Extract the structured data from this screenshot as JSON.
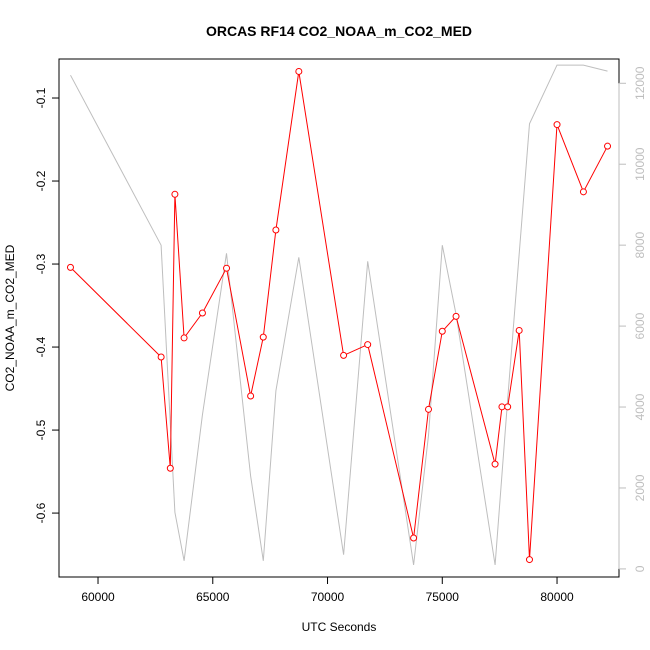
{
  "chart_data": {
    "type": "line",
    "title": "ORCAS RF14 CO2_NOAA_m_CO2_MED",
    "xlabel": "UTC Seconds",
    "ylabel": "CO2_NOAA_m_CO2_MED",
    "xlim": [
      58300,
      82700
    ],
    "ylim": [
      -0.677,
      -0.053
    ],
    "y2lim": [
      -200,
      12600
    ],
    "x_ticks": [
      60000,
      65000,
      70000,
      75000,
      80000
    ],
    "y_ticks": [
      -0.6,
      -0.5,
      -0.4,
      -0.3,
      -0.2,
      -0.1
    ],
    "y2_ticks": [
      0,
      2000,
      4000,
      6000,
      8000,
      10000,
      12000
    ],
    "series": [
      {
        "color": "#ff0000",
        "axis": "left",
        "markers": "open-circle",
        "x": [
          58800,
          62750,
          63150,
          63350,
          63750,
          64550,
          65600,
          66650,
          67200,
          67750,
          68750,
          70700,
          71750,
          73750,
          74400,
          75000,
          75600,
          77300,
          77600,
          77850,
          78350,
          78800,
          80000,
          81150,
          82200
        ],
        "y": [
          -0.304,
          -0.412,
          -0.546,
          -0.216,
          -0.389,
          -0.359,
          -0.305,
          -0.459,
          -0.388,
          -0.259,
          -0.068,
          -0.41,
          -0.397,
          -0.63,
          -0.475,
          -0.381,
          -0.363,
          -0.541,
          -0.472,
          -0.472,
          -0.38,
          -0.656,
          -0.132,
          -0.213,
          -0.158
        ]
      },
      {
        "color": "#bebebe",
        "axis": "right",
        "markers": "none",
        "x": [
          58800,
          62750,
          63350,
          63750,
          64550,
          65600,
          66650,
          67200,
          67750,
          68750,
          70700,
          71750,
          73750,
          74400,
          75000,
          75600,
          77300,
          77850,
          78800,
          80000,
          81150,
          82200
        ],
        "y": [
          12200,
          8000,
          1400,
          200,
          3800,
          7800,
          2300,
          200,
          4400,
          7700,
          350,
          7600,
          100,
          3300,
          8000,
          6300,
          100,
          4200,
          11000,
          12450,
          12450,
          12300
        ]
      }
    ]
  }
}
